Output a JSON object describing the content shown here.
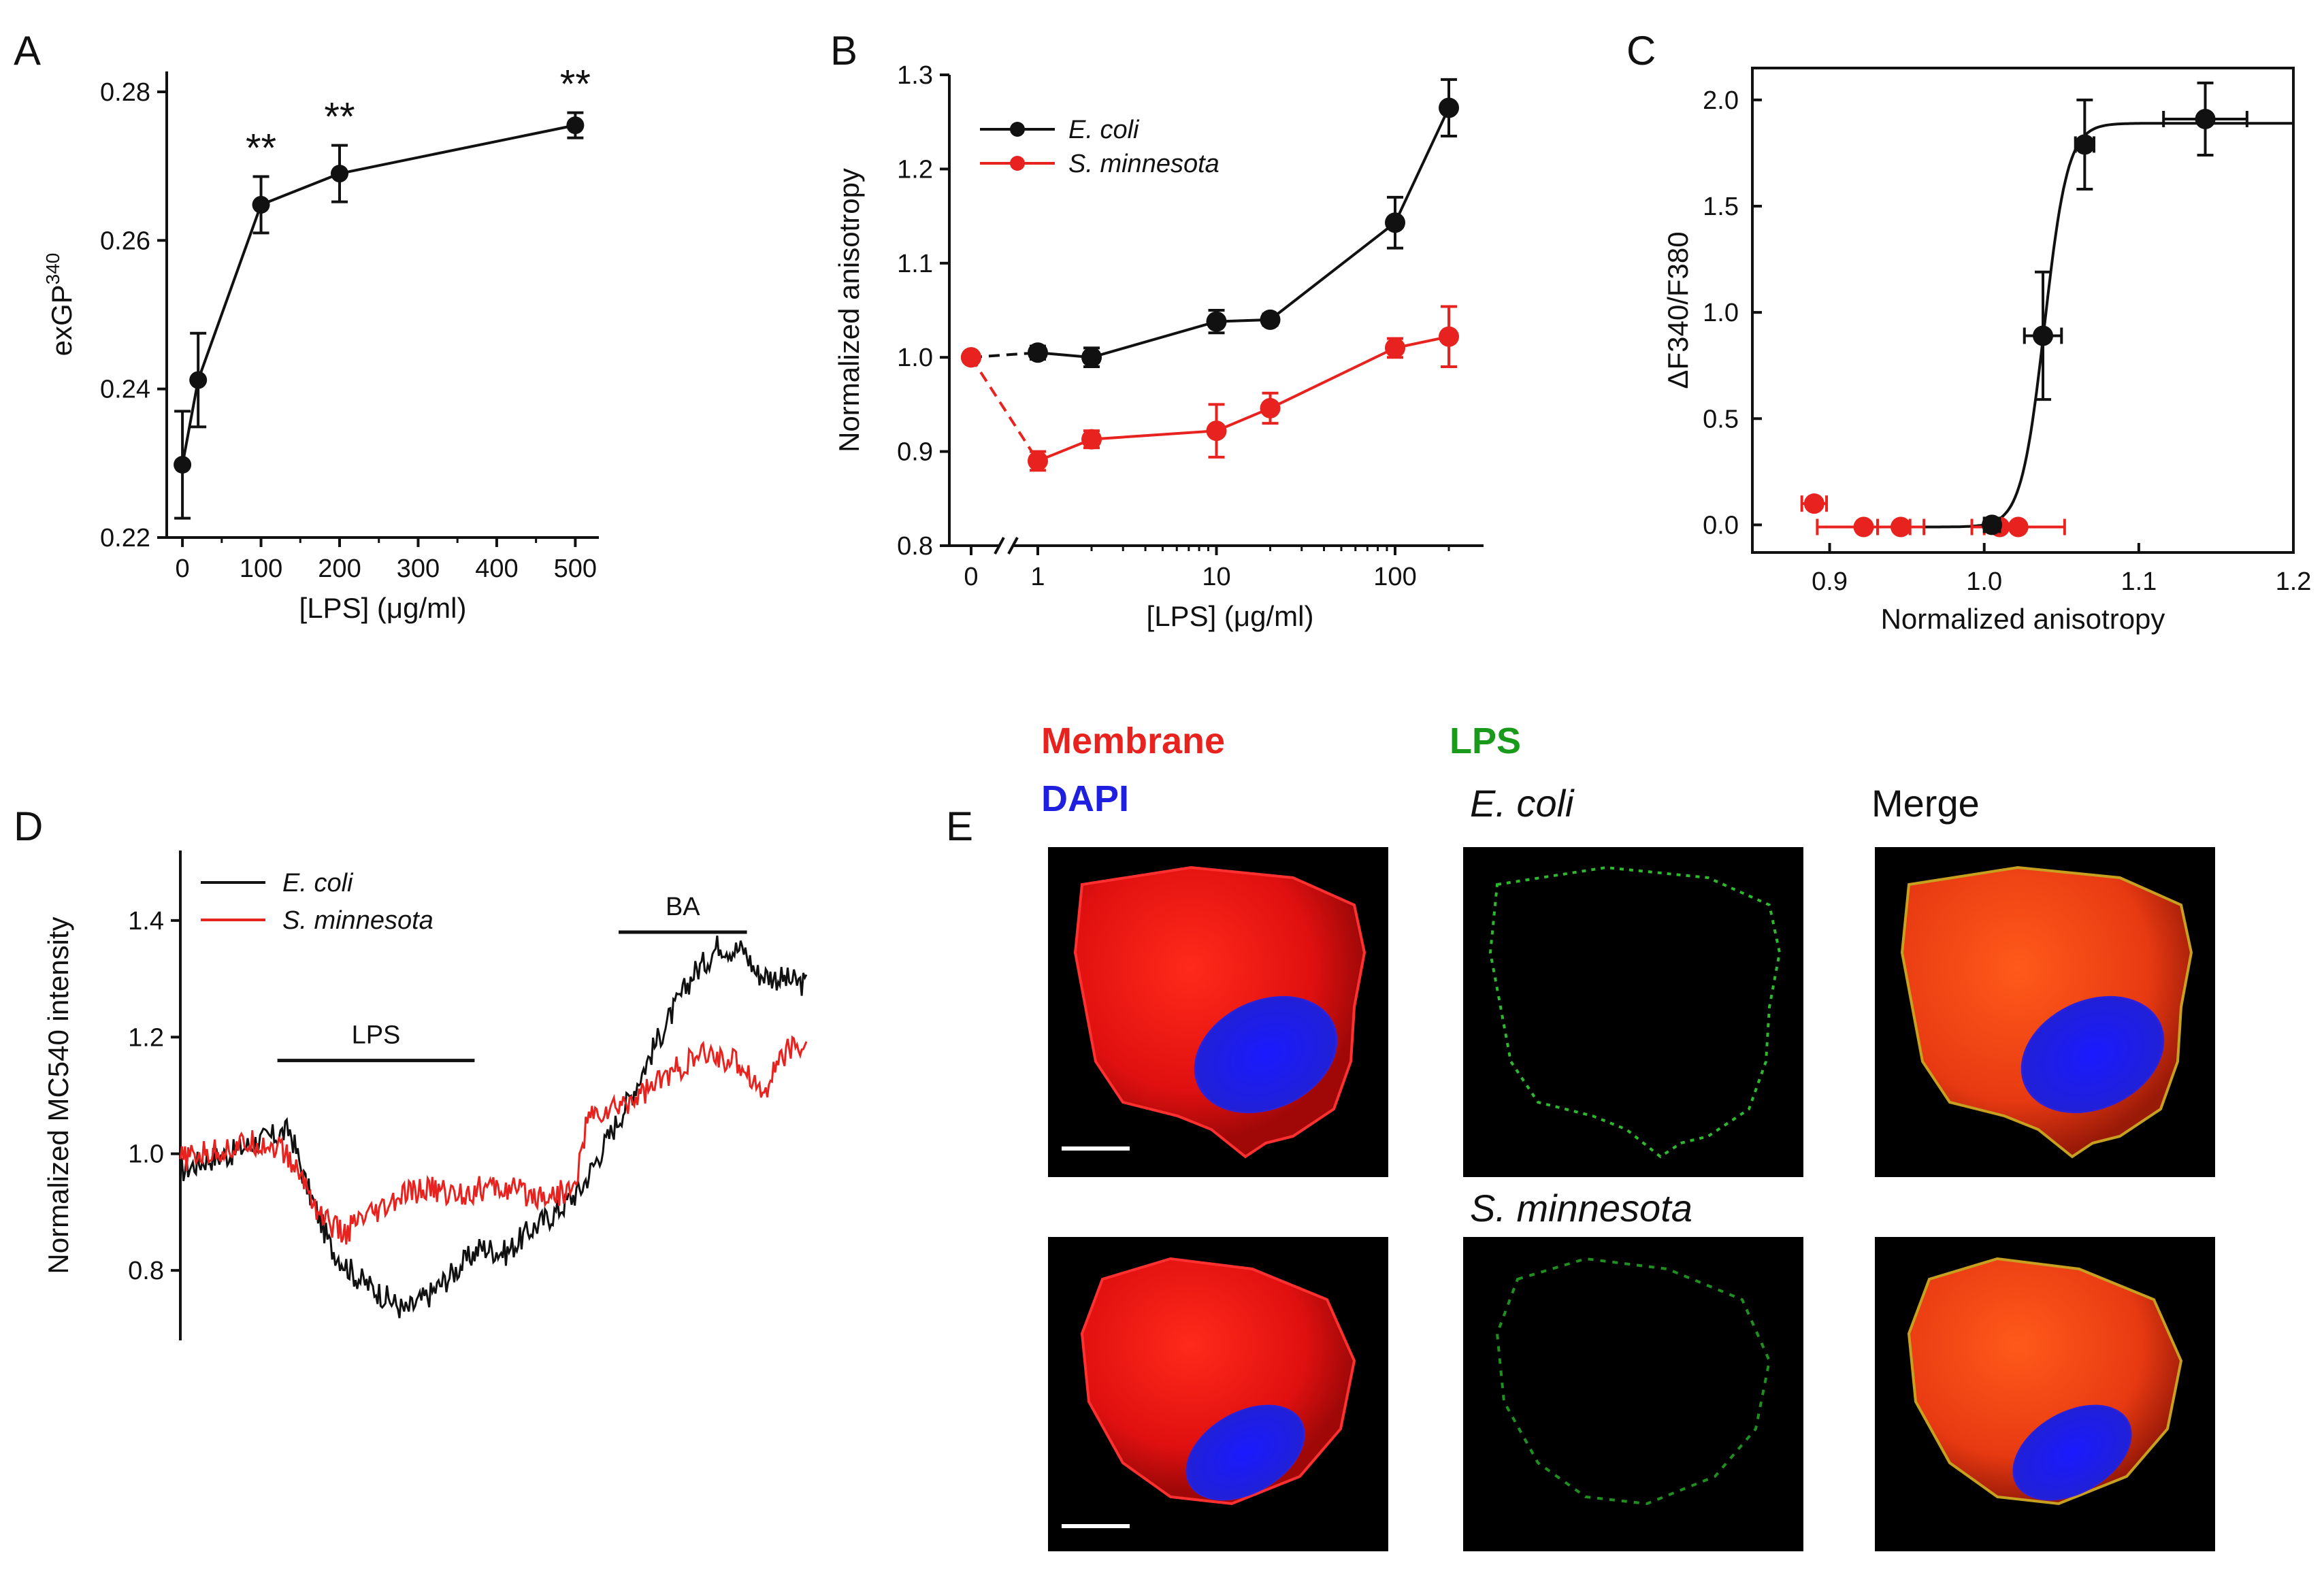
{
  "colors": {
    "black": "#111111",
    "red": "#e8231f",
    "green": "#1a9a1a",
    "blue": "#1f1fe0"
  },
  "panels": {
    "A": "A",
    "B": "B",
    "C": "C",
    "D": "D",
    "E": "E"
  },
  "chart_data": [
    {
      "panel": "A",
      "type": "line",
      "xlabel": "[LPS] (μg/ml)",
      "ylabel": "exGP",
      "ylabel_sup": "340",
      "xlim": [
        -20,
        530
      ],
      "ylim": [
        0.22,
        0.28
      ],
      "xticks": [
        0,
        100,
        200,
        300,
        400,
        500
      ],
      "xtick_labels": [
        "0",
        "100",
        "200",
        "300",
        "400",
        "500"
      ],
      "yticks": [
        0.22,
        0.24,
        0.26,
        0.28
      ],
      "ytick_labels": [
        "0.22",
        "0.24",
        "0.26",
        "0.28"
      ],
      "series": [
        {
          "name": "exGP340",
          "color": "#111111",
          "x": [
            0,
            20,
            100,
            200,
            500
          ],
          "y": [
            0.2298,
            0.2412,
            0.2648,
            0.269,
            0.2755
          ],
          "err": [
            0.0072,
            0.0063,
            0.0038,
            0.0038,
            0.0017
          ]
        }
      ],
      "annotations": [
        {
          "x": 100,
          "text": "**"
        },
        {
          "x": 200,
          "text": "**"
        },
        {
          "x": 500,
          "text": "**"
        }
      ]
    },
    {
      "panel": "B",
      "type": "line",
      "xscale": "log-with-break",
      "xlabel": "[LPS] (μg/ml)",
      "ylabel": "Normalized anisotropy",
      "ylim": [
        0.8,
        1.3
      ],
      "xtick_labels": [
        "0",
        "1",
        "10",
        "100"
      ],
      "yticks": [
        0.8,
        0.9,
        1.0,
        1.1,
        1.2,
        1.3
      ],
      "ytick_labels": [
        "0.8",
        "0.9",
        "1.0",
        "1.1",
        "1.2",
        "1.3"
      ],
      "legend": {
        "placement": "top-left"
      },
      "series": [
        {
          "name": "E. coli",
          "color": "#111111",
          "x": [
            0,
            1,
            2,
            10,
            20,
            100,
            200
          ],
          "y": [
            1.0,
            1.005,
            1.0,
            1.038,
            1.04,
            1.143,
            1.265
          ],
          "err": [
            0,
            0.007,
            0.01,
            0.012,
            0.006,
            0.027,
            0.03
          ]
        },
        {
          "name": "S. minnesota",
          "color": "#e8231f",
          "x": [
            0,
            1,
            2,
            10,
            20,
            100,
            200
          ],
          "y": [
            1.0,
            0.89,
            0.913,
            0.922,
            0.946,
            1.01,
            1.022
          ],
          "err": [
            0,
            0.01,
            0.009,
            0.028,
            0.016,
            0.01,
            0.032
          ]
        }
      ]
    },
    {
      "panel": "C",
      "type": "scatter",
      "xlabel": "Normalized anisotropy",
      "ylabel": "ΔF340/F380",
      "xlim": [
        0.85,
        1.2
      ],
      "ylim": [
        -0.13,
        2.15
      ],
      "xticks": [
        0.9,
        1.0,
        1.1,
        1.2
      ],
      "xtick_labels": [
        "0.9",
        "1.0",
        "1.1",
        "1.2"
      ],
      "yticks": [
        0.0,
        0.5,
        1.0,
        1.5,
        2.0
      ],
      "ytick_labels": [
        "0.0",
        "0.5",
        "1.0",
        "1.5",
        "2.0"
      ],
      "fit": {
        "model": "sigmoid",
        "bottom": -0.01,
        "top": 1.89,
        "x0": 1.039,
        "k": 0.0075,
        "color": "#111111"
      },
      "series": [
        {
          "name": "S. minnesota",
          "color": "#e8231f",
          "x": [
            0.89,
            0.922,
            0.946,
            1.01,
            1.022
          ],
          "y": [
            0.1,
            -0.01,
            -0.01,
            -0.01,
            -0.01
          ],
          "xerr": [
            0.008,
            0.03,
            0.015,
            0.01,
            0.03
          ]
        },
        {
          "name": "E. coli",
          "color": "#111111",
          "x": [
            1.005,
            1.038,
            1.065,
            1.143
          ],
          "y": [
            0.0,
            0.89,
            1.79,
            1.91
          ],
          "xerr": [
            0.005,
            0.012,
            0.006,
            0.027
          ],
          "yerr": [
            0.02,
            0.3,
            0.21,
            0.17
          ]
        }
      ]
    },
    {
      "panel": "D",
      "type": "line",
      "xlabel": "",
      "ylabel": "Normalized MC540 intensity",
      "xlim": [
        0,
        1000
      ],
      "ylim": [
        0.68,
        1.52
      ],
      "yticks": [
        0.8,
        1.0,
        1.2,
        1.4
      ],
      "ytick_labels": [
        "0.8",
        "1.0",
        "1.2",
        "1.4"
      ],
      "legend": {
        "placement": "top-left"
      },
      "bars": [
        {
          "label": "LPS",
          "x0": 155,
          "x1": 470,
          "y": 1.16
        },
        {
          "label": "BA",
          "x0": 700,
          "x1": 905,
          "y": 1.38
        }
      ],
      "series": [
        {
          "name": "E. coli",
          "color": "#111111",
          "x": [
            0,
            40,
            80,
            120,
            150,
            175,
            200,
            240,
            280,
            320,
            360,
            400,
            440,
            480,
            520,
            560,
            600,
            640,
            680,
            720,
            760,
            800,
            820,
            840,
            860,
            880,
            900,
            920,
            960,
            1000
          ],
          "y": [
            0.97,
            0.99,
            1.0,
            1.02,
            1.03,
            1.04,
            0.95,
            0.84,
            0.79,
            0.76,
            0.73,
            0.76,
            0.8,
            0.84,
            0.83,
            0.87,
            0.9,
            0.94,
            1.02,
            1.1,
            1.19,
            1.27,
            1.31,
            1.33,
            1.36,
            1.35,
            1.35,
            1.31,
            1.3,
            1.29
          ]
        },
        {
          "name": "S. minnesota",
          "color": "#e8231f",
          "x": [
            0,
            40,
            80,
            120,
            160,
            200,
            220,
            240,
            260,
            280,
            320,
            360,
            400,
            440,
            480,
            520,
            560,
            600,
            630,
            650,
            700,
            760,
            800,
            840,
            880,
            900,
            920,
            930,
            960,
            1000
          ],
          "y": [
            0.99,
            1.0,
            1.01,
            1.02,
            1.01,
            0.95,
            0.9,
            0.88,
            0.86,
            0.88,
            0.9,
            0.93,
            0.94,
            0.93,
            0.94,
            0.94,
            0.93,
            0.93,
            0.94,
            1.06,
            1.08,
            1.12,
            1.15,
            1.17,
            1.16,
            1.15,
            1.12,
            1.1,
            1.17,
            1.19
          ]
        }
      ]
    }
  ],
  "panel_e": {
    "labels": {
      "membrane": "Membrane",
      "dapi": "DAPI",
      "lps": "LPS",
      "ecoli": "E. coli",
      "merge": "Merge",
      "sminnesota": "S. minnesota"
    }
  }
}
